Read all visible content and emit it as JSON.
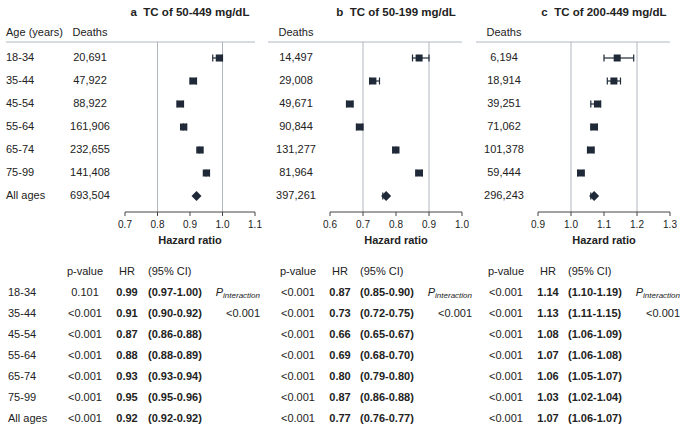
{
  "chart_data": [
    {
      "type": "forest",
      "title": "a  TC of 50-449 mg/dL",
      "row_header": "Age (years)",
      "categories": [
        "18-34",
        "35-44",
        "45-54",
        "55-64",
        "65-74",
        "75-99",
        "All ages"
      ],
      "xlabel": "Hazard ratio",
      "xlim": [
        0.7,
        1.1
      ],
      "xticks": [
        0.7,
        0.8,
        0.9,
        {
          "value": 1.0,
          "label": "1.0"
        },
        1.1
      ],
      "reference_lines": [
        0.8,
        1.0
      ],
      "deaths_header": "Deaths",
      "deaths": [
        "20,691",
        "47,922",
        "88,922",
        "161,906",
        "232,655",
        "141,408",
        "693,504"
      ],
      "values": [
        0.99,
        0.91,
        0.87,
        0.88,
        0.93,
        0.95,
        0.92
      ],
      "ci_low": [
        0.97,
        0.9,
        0.86,
        0.88,
        0.93,
        0.95,
        0.92
      ],
      "ci_high": [
        1.0,
        0.92,
        0.88,
        0.89,
        0.94,
        0.96,
        0.92
      ],
      "table_headers": [
        "p-value",
        "HR",
        "(95% CI)"
      ],
      "p_values": [
        "0.101",
        "<0.001",
        "<0.001",
        "<0.001",
        "<0.001",
        "<0.001",
        "<0.001"
      ],
      "value_labels": [
        "0.99",
        "0.91",
        "0.87",
        "0.88",
        "0.93",
        "0.95",
        "0.92"
      ],
      "ci_labels": [
        "(0.97-1.00)",
        "(0.90-0.92)",
        "(0.86-0.88)",
        "(0.88-0.89)",
        "(0.93-0.94)",
        "(0.95-0.96)",
        "(0.92-0.92)"
      ],
      "interaction_label": "P",
      "interaction_subscript": "interaction",
      "p_interaction": "<0.001"
    },
    {
      "type": "forest",
      "title": "b  TC of 50-199 mg/dL",
      "xlabel": "Hazard ratio",
      "xlim": [
        0.6,
        1.0
      ],
      "xticks": [
        0.6,
        0.7,
        0.8,
        0.9,
        {
          "value": 1.0,
          "label": "1.0"
        }
      ],
      "reference_lines": [
        0.7,
        0.9
      ],
      "deaths_header": "Deaths",
      "deaths": [
        "14,497",
        "29,008",
        "49,671",
        "90,844",
        "131,277",
        "81,964",
        "397,261"
      ],
      "values": [
        0.87,
        0.73,
        0.66,
        0.69,
        0.8,
        0.87,
        0.77
      ],
      "ci_low": [
        0.85,
        0.72,
        0.65,
        0.68,
        0.79,
        0.86,
        0.76
      ],
      "ci_high": [
        0.9,
        0.75,
        0.67,
        0.7,
        0.8,
        0.88,
        0.77
      ],
      "table_headers": [
        "p-value",
        "HR",
        "(95% CI)"
      ],
      "p_values": [
        "<0.001",
        "<0.001",
        "<0.001",
        "<0.001",
        "<0.001",
        "<0.001",
        "<0.001"
      ],
      "value_labels": [
        "0.87",
        "0.73",
        "0.66",
        "0.69",
        "0.80",
        "0.87",
        "0.77"
      ],
      "ci_labels": [
        "(0.85-0.90)",
        "(0.72-0.75)",
        "(0.65-0.67)",
        "(0.68-0.70)",
        "(0.79-0.80)",
        "(0.86-0.88)",
        "(0.76-0.77)"
      ],
      "interaction_label": "P",
      "interaction_subscript": "interaction",
      "p_interaction": "<0.001"
    },
    {
      "type": "forest",
      "title": "c  TC of 200-449 mg/dL",
      "xlabel": "Hazard ratio",
      "xlim": [
        0.9,
        1.3
      ],
      "xticks": [
        0.9,
        {
          "value": 1.0,
          "label": "1.0"
        },
        1.1,
        1.2,
        1.3
      ],
      "reference_lines": [
        1.0,
        1.2
      ],
      "deaths_header": "Deaths",
      "deaths": [
        "6,194",
        "18,914",
        "39,251",
        "71,062",
        "101,378",
        "59,444",
        "296,243"
      ],
      "values": [
        1.14,
        1.13,
        1.08,
        1.07,
        1.06,
        1.03,
        1.07
      ],
      "ci_low": [
        1.1,
        1.11,
        1.06,
        1.06,
        1.05,
        1.02,
        1.06
      ],
      "ci_high": [
        1.19,
        1.15,
        1.09,
        1.08,
        1.07,
        1.04,
        1.07
      ],
      "table_headers": [
        "p-value",
        "HR",
        "(95% CI)"
      ],
      "p_values": [
        "<0.001",
        "<0.001",
        "<0.001",
        "<0.001",
        "<0.001",
        "<0.001",
        "<0.001"
      ],
      "value_labels": [
        "1.14",
        "1.13",
        "1.08",
        "1.07",
        "1.06",
        "1.03",
        "1.07"
      ],
      "ci_labels": [
        "(1.10-1.19)",
        "(1.11-1.15)",
        "(1.06-1.09)",
        "(1.06-1.08)",
        "(1.05-1.07)",
        "(1.02-1.04)",
        "(1.06-1.07)"
      ],
      "interaction_label": "P",
      "interaction_subscript": "interaction",
      "p_interaction": "<0.001"
    }
  ]
}
